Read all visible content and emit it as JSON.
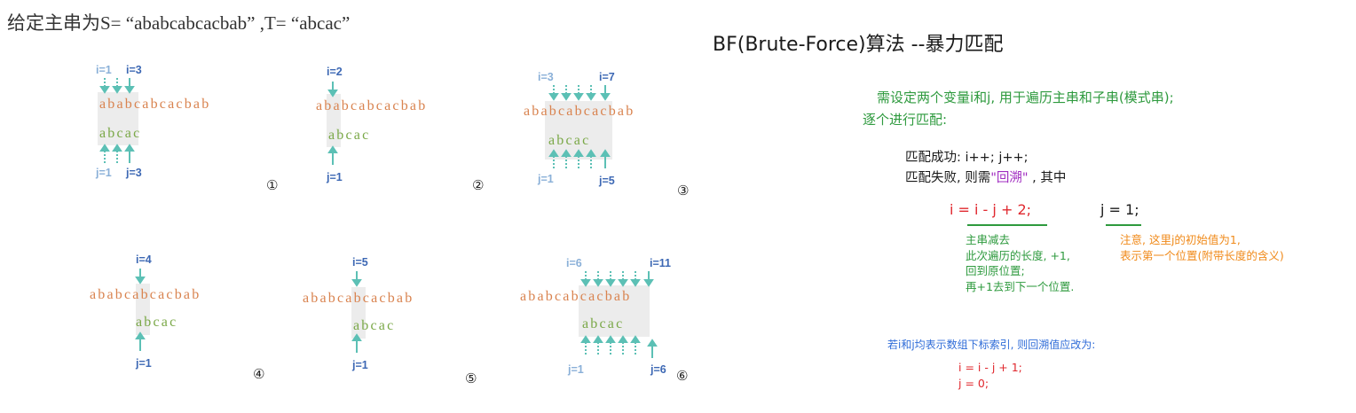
{
  "problem": "给定主串为S= “ababcabcacbab” ,T= “abcac”",
  "S": "ababcabcacbab",
  "T": "abcac",
  "steps": [
    {
      "num": "①",
      "i_start": "i=1",
      "i_cur": "i=3",
      "j_start": "j=1",
      "j_cur": "j=3"
    },
    {
      "num": "②",
      "i_cur": "i=2",
      "j_cur": "j=1"
    },
    {
      "num": "③",
      "i_start": "i=3",
      "i_cur": "i=7",
      "j_start": "j=1",
      "j_cur": "j=5"
    },
    {
      "num": "④",
      "i_cur": "i=4",
      "j_cur": "j=1"
    },
    {
      "num": "⑤",
      "i_cur": "i=5",
      "j_cur": "j=1"
    },
    {
      "num": "⑥",
      "i_start": "i=6",
      "i_cur": "i=11",
      "j_start": "j=1",
      "j_cur": "j=6"
    }
  ],
  "explain": {
    "title": "BF(Brute-Force)算法 --暴力匹配",
    "intro1": "需设定两个变量i和j, 用于遍历主串和子串(模式串);",
    "intro2": "逐个进行匹配:",
    "success": "匹配成功: i++; j++;",
    "fail_prefix": "匹配失败, 则需",
    "fail_quote": "\"回溯\"",
    "fail_suffix": ", 其中",
    "formula_i": "i = i - j + 2;",
    "formula_j": "j = 1;",
    "note_i": [
      "主串减去",
      "此次遍历的长度, +1,",
      "回到原位置;",
      "再+1去到下一个位置."
    ],
    "note_j": [
      "注意, 这里j的初始值为1,",
      "表示第一个位置(附带长度的含义)"
    ],
    "zero_title": "若i和j均表示数组下标索引, 则回溯值应改为:",
    "zero_i": "i = i - j + 1;",
    "zero_j": "j = 0;"
  },
  "colors": {
    "main_string": "#d9834f",
    "pattern": "#7aa847",
    "arrow": "#5cc0b5",
    "label_light": "#8ab0d8",
    "label_dark": "#3d68b4",
    "green_text": "#2e9a3e",
    "red_text": "#e0282e",
    "orange_text": "#f08a1a",
    "purple_text": "#a02cc0",
    "blue_text": "#2f6cd8"
  }
}
